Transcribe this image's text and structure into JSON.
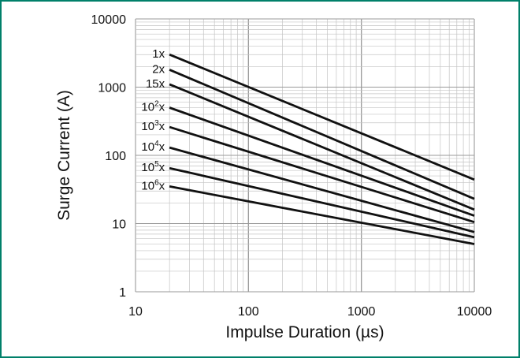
{
  "frame": {
    "border_color": "#00806a"
  },
  "chart_data": {
    "type": "line",
    "x_scale": "log",
    "y_scale": "log",
    "xlim": [
      10,
      10000
    ],
    "ylim": [
      1,
      10000
    ],
    "x_ticks": [
      "10",
      "100",
      "1000",
      "10000"
    ],
    "y_ticks": [
      "1",
      "10",
      "100",
      "1000",
      "10000"
    ],
    "xlabel": "Impulse Duration (µs)",
    "ylabel": "Surge Current (A)",
    "grid": true,
    "line_color": "#111111",
    "series": [
      {
        "name": "1x",
        "label_base": "1",
        "label_exp": "",
        "x": [
          20,
          10000
        ],
        "y": [
          3000,
          44
        ]
      },
      {
        "name": "2x",
        "label_base": "2",
        "label_exp": "",
        "x": [
          20,
          10000
        ],
        "y": [
          1800,
          23
        ]
      },
      {
        "name": "15x",
        "label_base": "15",
        "label_exp": "",
        "x": [
          20,
          10000
        ],
        "y": [
          1100,
          16
        ]
      },
      {
        "name": "10²x",
        "label_base": "10",
        "label_exp": "2",
        "x": [
          20,
          10000
        ],
        "y": [
          500,
          13
        ]
      },
      {
        "name": "10³x",
        "label_base": "10",
        "label_exp": "3",
        "x": [
          20,
          10000
        ],
        "y": [
          260,
          10.5
        ]
      },
      {
        "name": "10⁴x",
        "label_base": "10",
        "label_exp": "4",
        "x": [
          20,
          10000
        ],
        "y": [
          130,
          7.5
        ]
      },
      {
        "name": "10⁵x",
        "label_base": "10",
        "label_exp": "5",
        "x": [
          20,
          10000
        ],
        "y": [
          65,
          6.3
        ]
      },
      {
        "name": "10⁶x",
        "label_base": "10",
        "label_exp": "6",
        "x": [
          20,
          10000
        ],
        "y": [
          35,
          5
        ]
      }
    ]
  }
}
